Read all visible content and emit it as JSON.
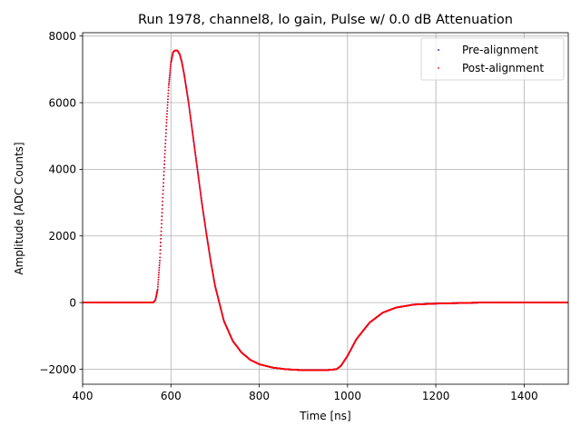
{
  "chart_data": {
    "type": "scatter",
    "title": "Run 1978, channel8, lo gain, Pulse w/ 0.0 dB Attenuation",
    "xlabel": "Time [ns]",
    "ylabel": "Amplitude [ADC Counts]",
    "xlim": [
      400,
      1500
    ],
    "ylim": [
      -2450,
      8100
    ],
    "xticks": [
      400,
      600,
      800,
      1000,
      1200,
      1400
    ],
    "yticks": [
      -2000,
      0,
      2000,
      4000,
      6000,
      8000
    ],
    "ytick_labels": [
      "−2000",
      "0",
      "2000",
      "4000",
      "6000",
      "8000"
    ],
    "grid": true,
    "legend_position": "top-right",
    "series": [
      {
        "name": "Pre-alignment",
        "color": "#0000ff",
        "x": [
          400,
          540,
          560,
          565,
          570,
          575,
          580,
          585,
          590,
          595,
          600,
          605,
          610,
          615,
          620,
          625,
          630,
          640,
          650,
          660,
          670,
          680,
          690,
          700,
          720,
          740,
          760,
          780,
          800,
          830,
          860,
          900,
          950,
          975,
          985,
          1000,
          1020,
          1050,
          1080,
          1110,
          1150,
          1200,
          1300,
          1500
        ],
        "y": [
          0,
          0,
          0,
          80,
          400,
          1300,
          2700,
          4100,
          5400,
          6500,
          7200,
          7520,
          7570,
          7560,
          7450,
          7200,
          6850,
          6000,
          5000,
          4000,
          3000,
          2100,
          1250,
          500,
          -550,
          -1150,
          -1500,
          -1720,
          -1850,
          -1950,
          -2000,
          -2030,
          -2030,
          -2000,
          -1900,
          -1600,
          -1100,
          -600,
          -300,
          -150,
          -60,
          -30,
          0,
          0
        ]
      },
      {
        "name": "Post-alignment",
        "color": "#ff0000",
        "x": [
          400,
          540,
          560,
          565,
          570,
          575,
          580,
          585,
          590,
          595,
          600,
          605,
          610,
          615,
          620,
          625,
          630,
          640,
          650,
          660,
          670,
          680,
          690,
          700,
          720,
          740,
          760,
          780,
          800,
          830,
          860,
          900,
          950,
          975,
          985,
          1000,
          1020,
          1050,
          1080,
          1110,
          1150,
          1200,
          1300,
          1500
        ],
        "y": [
          0,
          0,
          0,
          80,
          400,
          1300,
          2700,
          4100,
          5400,
          6500,
          7200,
          7520,
          7570,
          7560,
          7450,
          7200,
          6850,
          6000,
          5000,
          4000,
          3000,
          2100,
          1250,
          500,
          -550,
          -1150,
          -1500,
          -1720,
          -1850,
          -1950,
          -2000,
          -2030,
          -2030,
          -2000,
          -1900,
          -1600,
          -1100,
          -600,
          -300,
          -150,
          -60,
          -30,
          0,
          0
        ]
      }
    ]
  }
}
